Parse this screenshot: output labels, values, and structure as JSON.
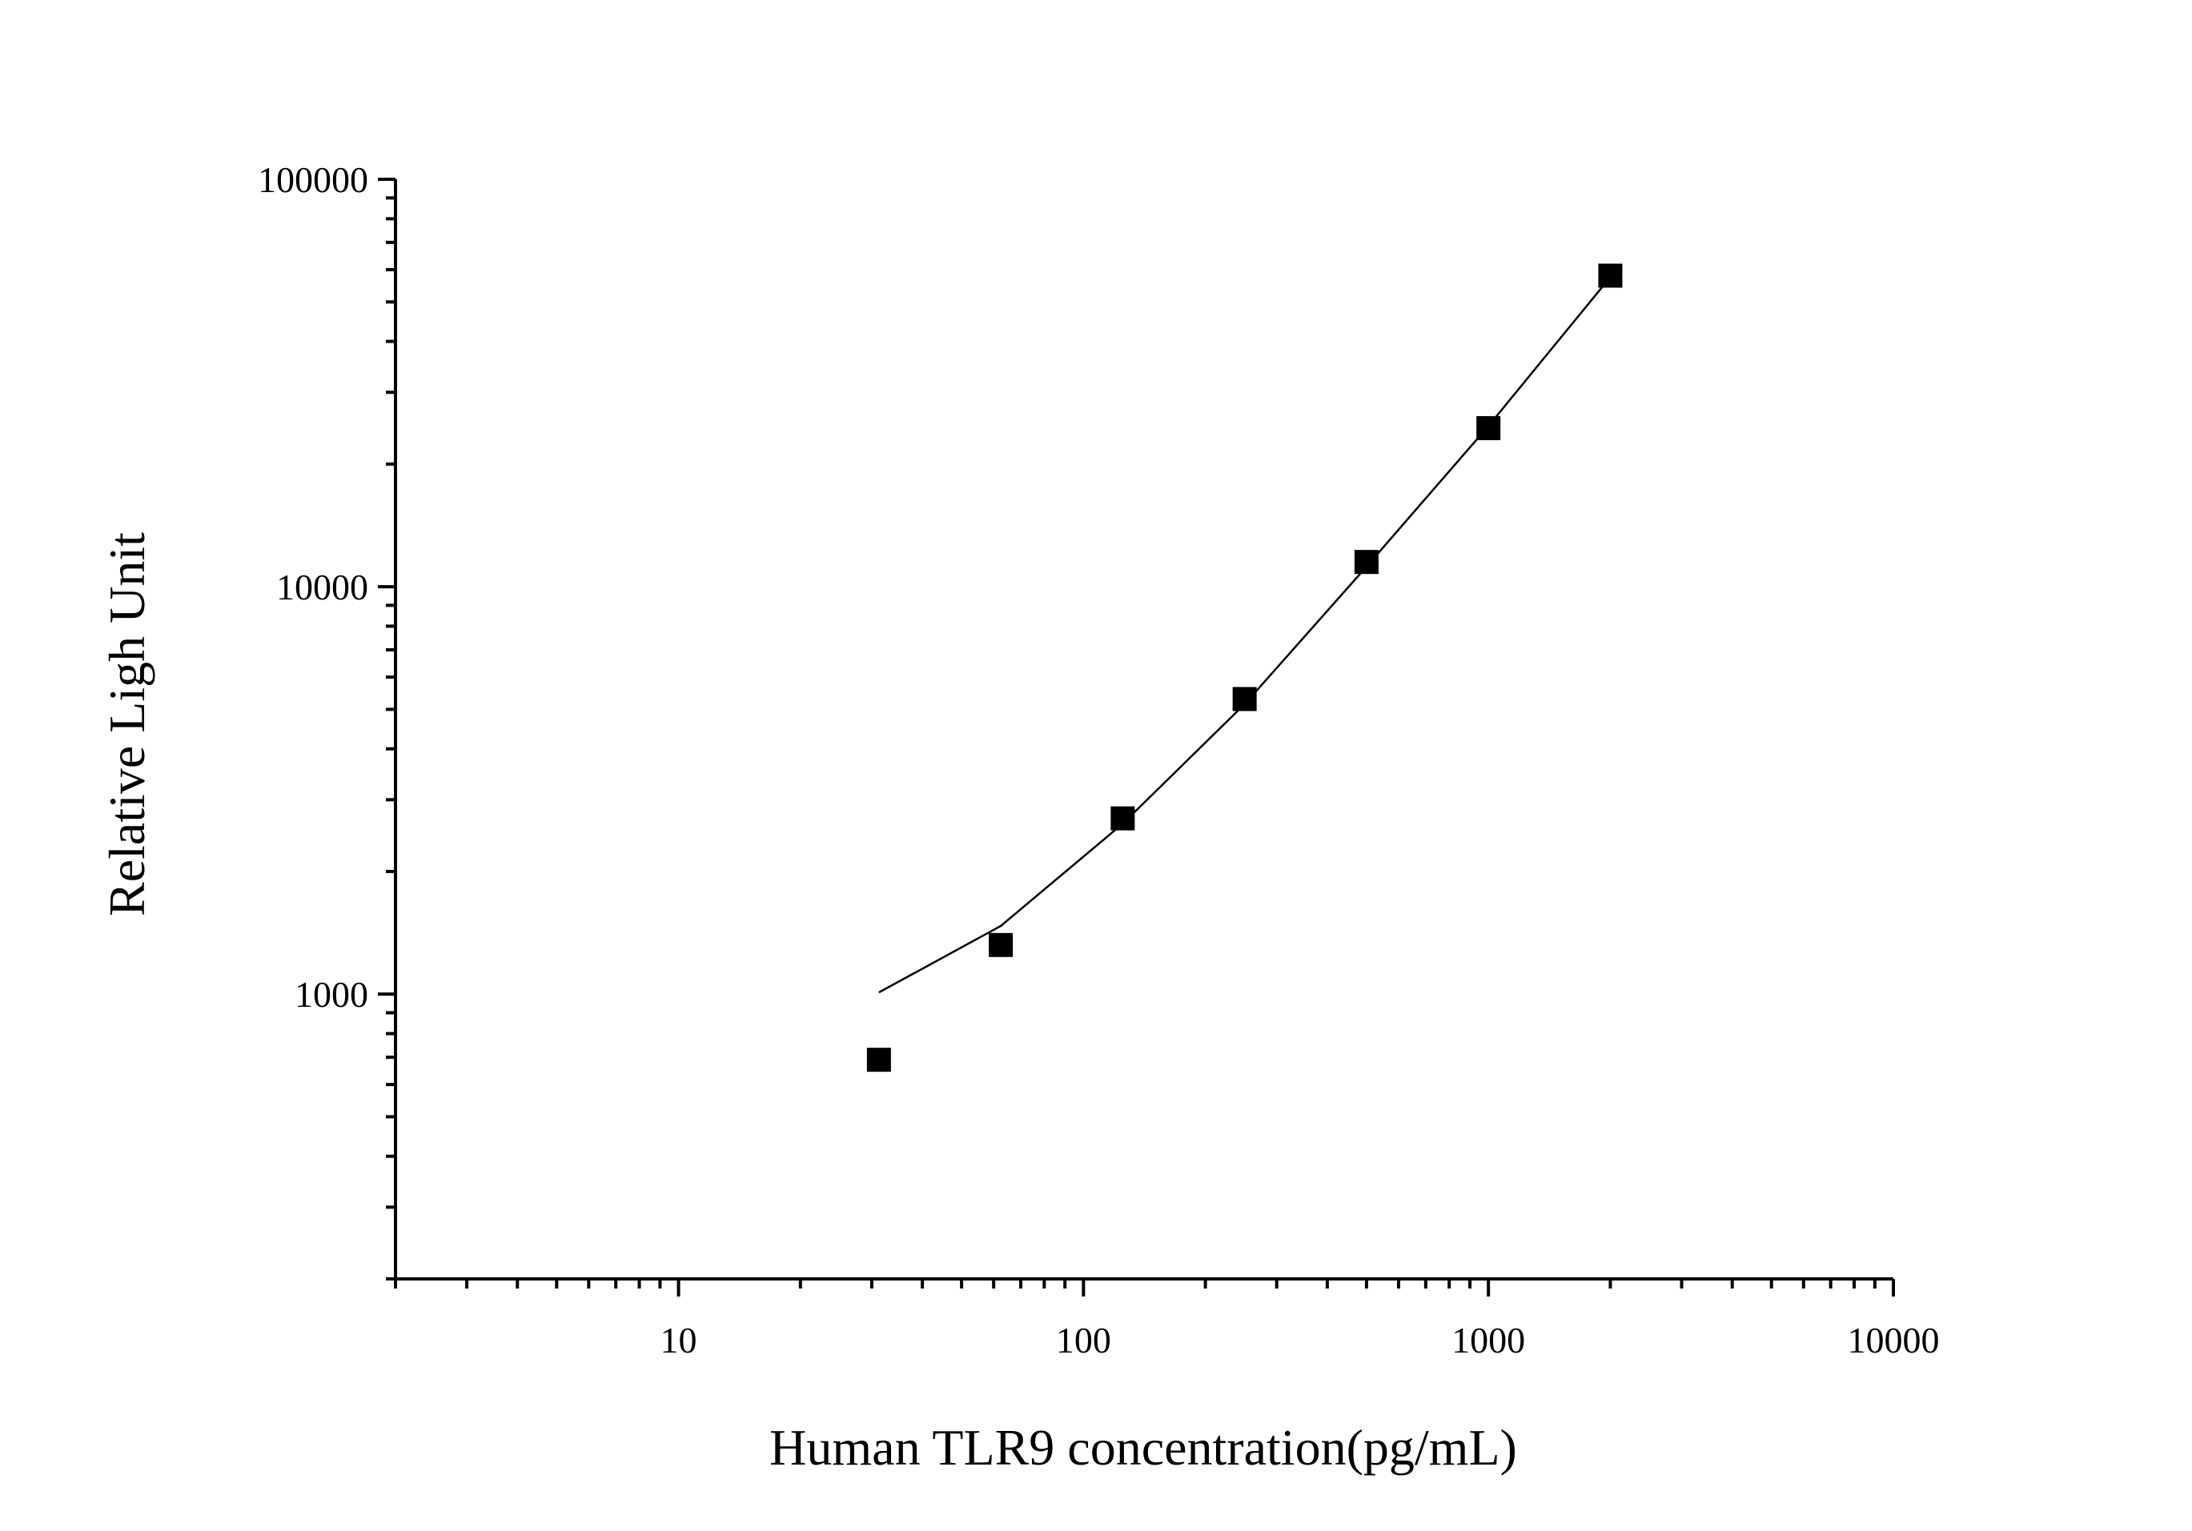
{
  "chart_data": {
    "type": "scatter",
    "title": "",
    "xlabel": "Human TLR9 concentration(pg/mL)",
    "ylabel": "Relative Ligh Unit",
    "x_scale": "log",
    "y_scale": "log",
    "xlim": [
      2,
      10000
    ],
    "ylim": [
      200,
      100000
    ],
    "x_tick_labels": [
      "10",
      "100",
      "1000",
      "10000"
    ],
    "x_tick_values": [
      10,
      100,
      1000,
      10000
    ],
    "y_tick_labels": [
      "1000",
      "10000",
      "100000"
    ],
    "y_tick_values": [
      1000,
      10000,
      100000
    ],
    "grid": false,
    "series": [
      {
        "kind": "points",
        "marker": "square",
        "color": "#000000",
        "x": [
          31.25,
          62.5,
          125,
          250,
          500,
          1000,
          2000
        ],
        "y": [
          690,
          1320,
          2700,
          5300,
          11500,
          24500,
          58000
        ]
      },
      {
        "kind": "fit-line",
        "color": "#000000",
        "x": [
          31.25,
          62.5,
          125,
          250,
          500,
          1000,
          2000
        ],
        "y": [
          1010,
          1470,
          2620,
          5150,
          11200,
          24800,
          57500
        ]
      }
    ]
  }
}
